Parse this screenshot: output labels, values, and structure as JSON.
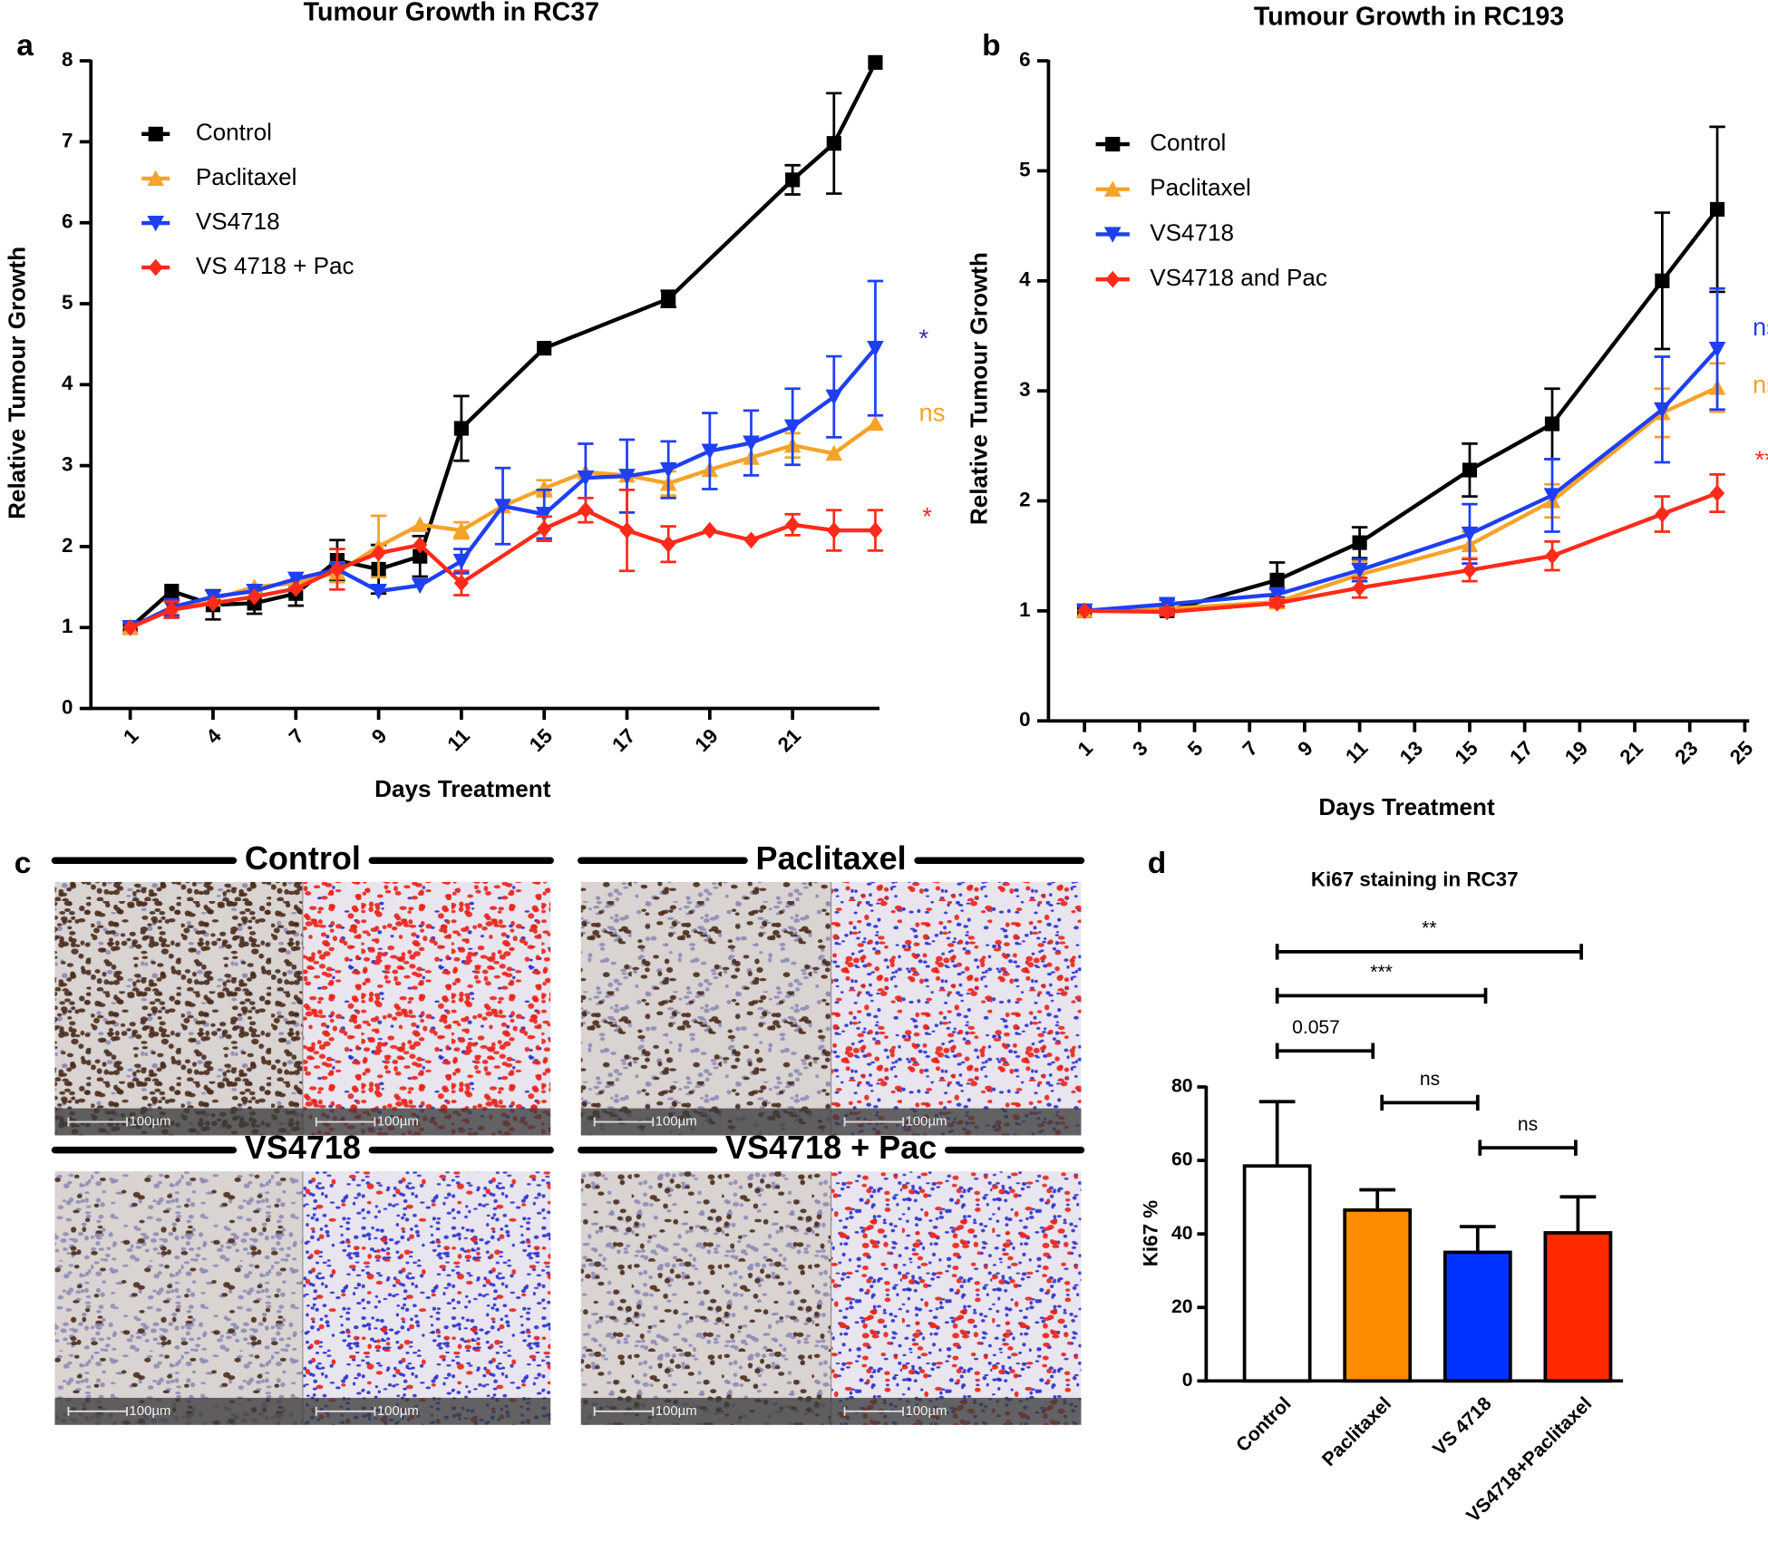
{
  "chart_data": [
    {
      "type": "line",
      "panel_label": "a",
      "title": "Tumour Growth in RC37",
      "xlabel": "Days Treatment",
      "ylabel": "Relative Tumour Growth",
      "xlim": [
        -0.95,
        18.1
      ],
      "xticks": [
        {
          "value": 0,
          "label": "1"
        },
        {
          "value": 2,
          "label": "4"
        },
        {
          "value": 4,
          "label": "7"
        },
        {
          "value": 6,
          "label": "9"
        },
        {
          "value": 8,
          "label": "11"
        },
        {
          "value": 10,
          "label": "15"
        },
        {
          "value": 12,
          "label": "17"
        },
        {
          "value": 14,
          "label": "19"
        },
        {
          "value": 16,
          "label": "21"
        }
      ],
      "ylim": [
        0,
        8
      ],
      "yticks": [
        0,
        1,
        2,
        3,
        4,
        5,
        6,
        7,
        8
      ],
      "legend": "upper left",
      "series": [
        {
          "name": "Control",
          "color": "#000000",
          "marker": "square",
          "x": [
            0,
            1,
            2,
            3,
            4,
            5,
            6,
            7,
            8,
            10,
            13,
            16,
            17,
            18
          ],
          "values": [
            1.0,
            1.45,
            1.28,
            1.3,
            1.42,
            1.83,
            1.72,
            1.88,
            3.46,
            4.45,
            5.06,
            6.53,
            6.98,
            7.98
          ],
          "errors": [
            null,
            null,
            0.18,
            0.13,
            0.15,
            0.25,
            0.3,
            0.25,
            0.4,
            null,
            0.1,
            0.18,
            0.62,
            null
          ]
        },
        {
          "name": "Paclitaxel",
          "color": "#f5a329",
          "marker": "triangle-up",
          "x": [
            0,
            1,
            2,
            3,
            4,
            5,
            6,
            7,
            8,
            9,
            10,
            11,
            12,
            13,
            14,
            15,
            16,
            17,
            18
          ],
          "values": [
            1.0,
            1.22,
            1.35,
            1.5,
            1.55,
            1.68,
            2.0,
            2.27,
            2.2,
            2.5,
            2.72,
            2.92,
            2.88,
            2.78,
            2.95,
            3.1,
            3.25,
            3.15,
            3.52
          ],
          "errors": [
            null,
            null,
            null,
            null,
            null,
            0.12,
            0.38,
            null,
            0.1,
            null,
            0.1,
            null,
            null,
            0.15,
            null,
            null,
            0.15,
            null,
            null
          ]
        },
        {
          "name": "VS4718",
          "color": "#1f3ff2",
          "marker": "triangle-down",
          "x": [
            0,
            1,
            2,
            3,
            4,
            5,
            6,
            7,
            8,
            9,
            10,
            11,
            12,
            13,
            14,
            15,
            16,
            17,
            18
          ],
          "values": [
            1.0,
            1.25,
            1.38,
            1.45,
            1.6,
            1.72,
            1.45,
            1.52,
            1.82,
            2.5,
            2.4,
            2.85,
            2.87,
            2.95,
            3.18,
            3.28,
            3.48,
            3.85,
            4.45
          ],
          "errors": [
            null,
            0.1,
            null,
            null,
            null,
            null,
            null,
            null,
            0.15,
            0.47,
            0.3,
            0.42,
            0.45,
            0.35,
            0.47,
            0.4,
            0.47,
            0.5,
            0.83
          ]
        },
        {
          "name": "VS 4718 + Pac",
          "color": "#ff2a1a",
          "marker": "diamond",
          "x": [
            0,
            1,
            2,
            3,
            4,
            5,
            6,
            7,
            8,
            10,
            11,
            12,
            13,
            14,
            15,
            16,
            17,
            18
          ],
          "values": [
            1.0,
            1.22,
            1.3,
            1.38,
            1.48,
            1.72,
            1.92,
            2.02,
            1.55,
            2.22,
            2.45,
            2.2,
            2.03,
            2.2,
            2.08,
            2.27,
            2.2,
            2.2
          ],
          "errors": [
            null,
            0.1,
            null,
            null,
            null,
            0.25,
            null,
            null,
            0.15,
            0.15,
            0.15,
            0.5,
            0.22,
            null,
            null,
            0.13,
            0.25,
            0.25
          ]
        }
      ],
      "annotations": [
        {
          "text": "*",
          "color": "#3b2fa0"
        },
        {
          "text": "ns",
          "color": "#f5a329"
        },
        {
          "text": "*",
          "color": "#ff2a1a"
        }
      ]
    },
    {
      "type": "line",
      "panel_label": "b",
      "title": "Tumour Growth in RC193",
      "xlabel": "Days Treatment",
      "ylabel": "Relative Tumour Growth",
      "xlim": [
        -0.31,
        25.16
      ],
      "xticks": [
        1,
        3,
        5,
        7,
        9,
        11,
        13,
        15,
        17,
        19,
        21,
        23,
        25
      ],
      "ylim": [
        0,
        6
      ],
      "yticks": [
        0,
        1,
        2,
        3,
        4,
        5,
        6
      ],
      "legend": "upper left",
      "series": [
        {
          "name": "Control",
          "color": "#000000",
          "marker": "square",
          "x": [
            1,
            4,
            8,
            11,
            15,
            18,
            22,
            24
          ],
          "values": [
            1.0,
            1.0,
            1.28,
            1.62,
            2.28,
            2.7,
            4.0,
            4.65
          ],
          "errors": [
            null,
            0.03,
            0.16,
            0.14,
            0.24,
            0.32,
            0.62,
            0.75
          ]
        },
        {
          "name": "Paclitaxel",
          "color": "#f5a329",
          "marker": "triangle-up",
          "x": [
            1,
            4,
            8,
            11,
            15,
            18,
            22,
            24
          ],
          "values": [
            1.0,
            1.02,
            1.08,
            1.33,
            1.6,
            2.0,
            2.8,
            3.03
          ],
          "errors": [
            null,
            null,
            0.03,
            0.12,
            0.12,
            0.15,
            0.22,
            0.22
          ]
        },
        {
          "name": "VS4718",
          "color": "#1f3ff2",
          "marker": "triangle-down",
          "x": [
            1,
            4,
            8,
            11,
            15,
            18,
            22,
            24
          ],
          "values": [
            1.0,
            1.06,
            1.15,
            1.37,
            1.7,
            2.05,
            2.83,
            3.38
          ],
          "errors": [
            null,
            0.04,
            0.05,
            0.1,
            0.27,
            0.33,
            0.48,
            0.55
          ]
        },
        {
          "name": "VS4718 and Pac",
          "color": "#ff2a1a",
          "marker": "diamond",
          "x": [
            1,
            4,
            8,
            11,
            15,
            18,
            22,
            24
          ],
          "values": [
            1.0,
            0.99,
            1.07,
            1.21,
            1.37,
            1.5,
            1.88,
            2.07
          ],
          "errors": [
            null,
            0.03,
            0.03,
            0.09,
            0.1,
            0.13,
            0.16,
            0.17
          ]
        }
      ],
      "annotations": [
        {
          "text": "ns",
          "color": "#1f3ff2"
        },
        {
          "text": "ns",
          "color": "#f5a329"
        },
        {
          "text": "**",
          "color": "#ff2a1a"
        }
      ]
    },
    {
      "type": "bar",
      "panel_label": "d",
      "title": "Ki67 staining in RC37",
      "ylabel": "Ki67 %",
      "categories": [
        "Control",
        "Paclitaxel",
        "VS 4718",
        "VS4718+Paclitaxel"
      ],
      "values": [
        58.5,
        46.5,
        35,
        40.3
      ],
      "errors": [
        17.5,
        5.5,
        7,
        9.8
      ],
      "colors": [
        "#ffffff",
        "#ff8c00",
        "#0033ff",
        "#ff2a00"
      ],
      "ylim": [
        0,
        80
      ],
      "yticks": [
        0,
        20,
        40,
        60,
        80
      ],
      "comparisons": [
        "**",
        "***",
        "0.057",
        "ns",
        "ns"
      ]
    }
  ],
  "micrographs": {
    "panel_label": "c",
    "panels": [
      {
        "title": "Control",
        "scale_bars": [
          "100µm",
          "100µm"
        ]
      },
      {
        "title": "Paclitaxel",
        "scale_bars": [
          "100µm",
          "100µm"
        ]
      },
      {
        "title": "VS4718",
        "scale_bars": [
          "100µm",
          "100µm"
        ]
      },
      {
        "title": "VS4718 + Pac",
        "scale_bars": [
          "100µm",
          "100µm"
        ]
      }
    ]
  }
}
